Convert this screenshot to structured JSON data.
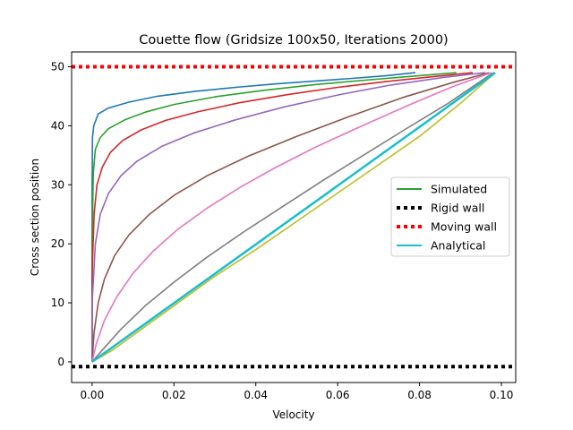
{
  "chart_data": {
    "type": "line",
    "title": "Couette flow (Gridsize 100x50, Iterations 2000)",
    "xlabel": "Velocity",
    "ylabel": "Cross section position",
    "xlim": [
      -0.005,
      0.1035
    ],
    "ylim": [
      -3.5,
      52.5
    ],
    "xticks": [
      0.0,
      0.02,
      0.04,
      0.06,
      0.08,
      0.1
    ],
    "xtick_labels": [
      "0.00",
      "0.02",
      "0.04",
      "0.06",
      "0.08",
      "0.10"
    ],
    "yticks": [
      0,
      10,
      20,
      30,
      40,
      50
    ],
    "ytick_labels": [
      "0",
      "10",
      "20",
      "30",
      "40",
      "50"
    ],
    "grid": false,
    "legend_position": "center-right",
    "series": [
      {
        "color": "#1f77b4",
        "style": "solid",
        "x": [
          0.0,
          0.0,
          0.0,
          0.0001,
          0.0004,
          0.0015,
          0.004,
          0.009,
          0.016,
          0.025,
          0.035,
          0.045,
          0.055,
          0.065,
          0.072,
          0.079
        ],
        "y": [
          0,
          10,
          30,
          38,
          40,
          42,
          43,
          44,
          45,
          45.8,
          46.5,
          47.1,
          47.6,
          48.1,
          48.5,
          49
        ]
      },
      {
        "color": "#2ca02c",
        "style": "solid",
        "x": [
          0.0,
          0.0,
          0.0003,
          0.0008,
          0.002,
          0.004,
          0.008,
          0.013,
          0.02,
          0.03,
          0.042,
          0.055,
          0.068,
          0.08,
          0.089
        ],
        "y": [
          0,
          20,
          32,
          36,
          38,
          39.5,
          41,
          42.3,
          43.6,
          44.9,
          46,
          47,
          47.8,
          48.5,
          49
        ]
      },
      {
        "color": "#d62728",
        "style": "solid",
        "x": [
          0.0,
          0.0,
          0.0005,
          0.0012,
          0.0025,
          0.0045,
          0.0075,
          0.012,
          0.018,
          0.026,
          0.036,
          0.048,
          0.06,
          0.072,
          0.083,
          0.093
        ],
        "y": [
          0,
          15,
          25,
          30,
          33,
          35.5,
          37.5,
          39.3,
          40.9,
          42.4,
          43.9,
          45.3,
          46.5,
          47.5,
          48.3,
          49
        ]
      },
      {
        "color": "#9467bd",
        "style": "solid",
        "x": [
          0.0,
          0.0,
          0.0008,
          0.002,
          0.004,
          0.007,
          0.011,
          0.017,
          0.025,
          0.035,
          0.047,
          0.06,
          0.073,
          0.086,
          0.096
        ],
        "y": [
          0,
          10,
          20,
          25,
          28.5,
          31.5,
          34,
          36.5,
          38.8,
          41,
          43.2,
          45.2,
          46.9,
          48.2,
          49
        ]
      },
      {
        "color": "#8c564b",
        "style": "solid",
        "x": [
          0.0,
          0.0005,
          0.0015,
          0.003,
          0.0055,
          0.009,
          0.014,
          0.02,
          0.028,
          0.038,
          0.05,
          0.063,
          0.076,
          0.088,
          0.097
        ],
        "y": [
          0,
          5,
          10,
          14,
          18,
          21.5,
          25,
          28.2,
          31.5,
          34.8,
          38.2,
          41.6,
          44.8,
          47.3,
          49
        ]
      },
      {
        "color": "#e377c2",
        "style": "solid",
        "x": [
          0.0,
          0.001,
          0.003,
          0.006,
          0.01,
          0.015,
          0.021,
          0.028,
          0.036,
          0.045,
          0.055,
          0.066,
          0.077,
          0.088,
          0.0975
        ],
        "y": [
          0,
          3,
          7,
          11,
          15,
          18.8,
          22.5,
          26,
          29.5,
          33,
          36.5,
          40,
          43.4,
          46.6,
          49
        ]
      },
      {
        "color": "#7f7f7f",
        "style": "solid",
        "x": [
          0.0,
          0.0025,
          0.007,
          0.013,
          0.02,
          0.028,
          0.037,
          0.047,
          0.057,
          0.067,
          0.077,
          0.087,
          0.098
        ],
        "y": [
          0,
          2,
          5.5,
          9.5,
          13.5,
          17.7,
          22,
          26.5,
          31,
          35.3,
          39.6,
          43.8,
          49
        ]
      },
      {
        "color": "#bcbd22",
        "style": "solid",
        "x": [
          0.0,
          0.005,
          0.012,
          0.02,
          0.03,
          0.04,
          0.05,
          0.06,
          0.07,
          0.08,
          0.09,
          0.0985
        ],
        "y": [
          0,
          2,
          5.5,
          9.5,
          14.5,
          19,
          23.8,
          28.6,
          33.4,
          38.2,
          43.8,
          49
        ]
      },
      {
        "color": "#2ca02c",
        "style": "solid",
        "x": [],
        "y": [],
        "name": "Simulated"
      },
      {
        "color": "#000000",
        "style": "dotted",
        "x": [
          -0.005,
          0.1035
        ],
        "y": [
          -0.8,
          -0.8
        ],
        "name": "Rigid wall"
      },
      {
        "color": "#ff0000",
        "style": "dotted",
        "x": [
          -0.005,
          0.1035
        ],
        "y": [
          50,
          50
        ],
        "name": "Moving wall"
      },
      {
        "color": "#17becf",
        "style": "solid",
        "x": [
          0.0,
          0.0985
        ],
        "y": [
          0,
          49
        ],
        "name": "Analytical"
      }
    ],
    "legend": [
      {
        "label": "Simulated",
        "color": "#2ca02c",
        "style": "solid"
      },
      {
        "label": "Rigid wall",
        "color": "#000000",
        "style": "dotted"
      },
      {
        "label": "Moving wall",
        "color": "#ff0000",
        "style": "dotted"
      },
      {
        "label": "Analytical",
        "color": "#17becf",
        "style": "solid"
      }
    ]
  }
}
